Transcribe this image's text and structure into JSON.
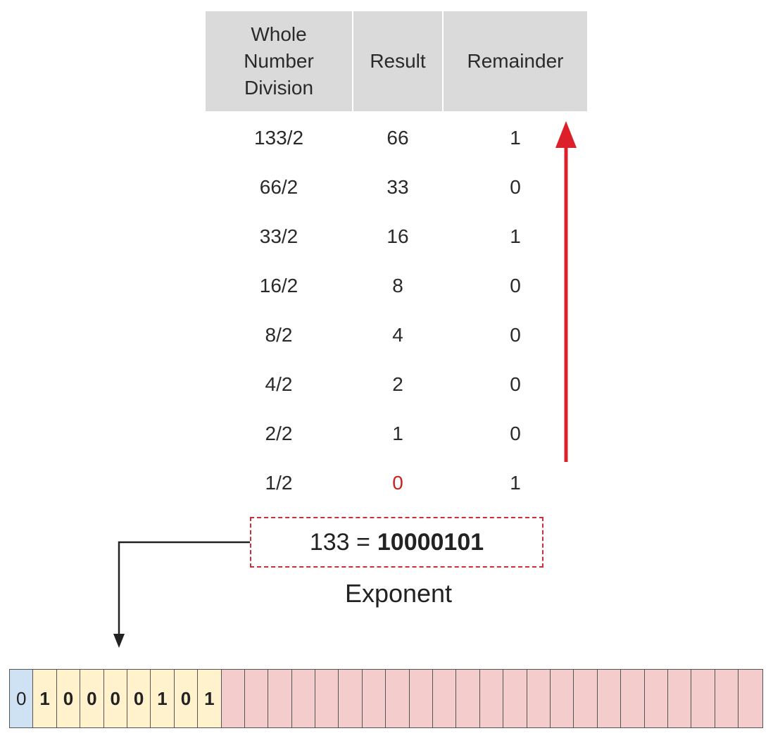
{
  "table": {
    "headers": [
      "Whole\nNumber\nDivision",
      "Result",
      "Remainder"
    ],
    "rows": [
      {
        "division": "133/2",
        "result": "66",
        "remainder": "1"
      },
      {
        "division": "66/2",
        "result": "33",
        "remainder": "0"
      },
      {
        "division": "33/2",
        "result": "16",
        "remainder": "1"
      },
      {
        "division": "16/2",
        "result": "8",
        "remainder": "0"
      },
      {
        "division": "8/2",
        "result": "4",
        "remainder": "0"
      },
      {
        "division": "4/2",
        "result": "2",
        "remainder": "0"
      },
      {
        "division": "2/2",
        "result": "1",
        "remainder": "0"
      },
      {
        "division": "1/2",
        "result": "0",
        "remainder": "1"
      }
    ]
  },
  "result_box": {
    "decimal": "133 =",
    "binary": "10000101"
  },
  "exponent_label": "Exponent",
  "bits": {
    "sign": [
      "0"
    ],
    "exponent": [
      "1",
      "0",
      "0",
      "0",
      "0",
      "1",
      "0",
      "1"
    ],
    "mantissa_count": 23
  },
  "colors": {
    "header_bg": "#dadada",
    "red_arrow": "#dd1f2a",
    "dashed_border": "#cc2f3a",
    "sign_bg": "#cfe2f3",
    "exponent_bg": "#fff2cc",
    "mantissa_bg": "#f4cccc"
  }
}
